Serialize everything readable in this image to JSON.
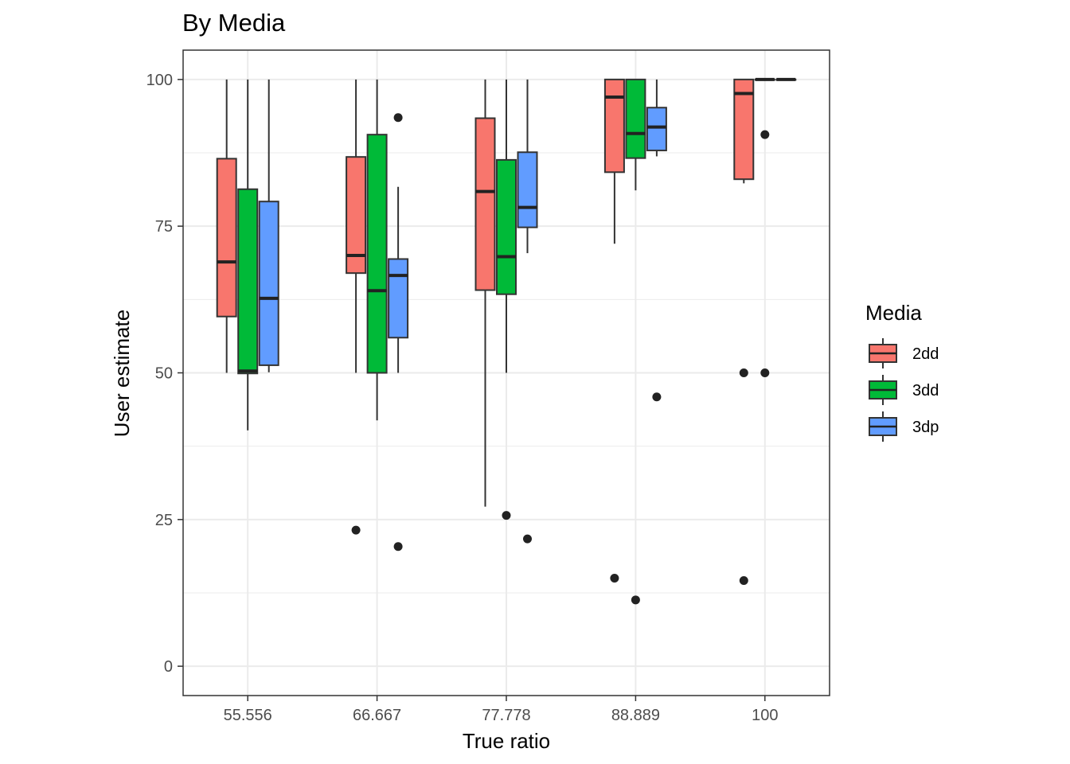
{
  "chart_data": {
    "type": "boxplot",
    "title": "By Media",
    "xlabel": "True ratio",
    "ylabel": "User estimate",
    "categories": [
      "55.556",
      "66.667",
      "77.778",
      "88.889",
      "100"
    ],
    "ylim": [
      -5,
      105
    ],
    "yticks": [
      0,
      25,
      50,
      75,
      100
    ],
    "grid": true,
    "legend": {
      "title": "Media",
      "position": "right"
    },
    "series": [
      {
        "name": "2dd",
        "color": "#F8766D",
        "boxes": [
          {
            "min": 50,
            "q1": 59.6,
            "median": 68.9,
            "q3": 86.5,
            "max": 100,
            "outliers": []
          },
          {
            "min": 50,
            "q1": 67.0,
            "median": 70.0,
            "q3": 86.8,
            "max": 100,
            "outliers": [
              23.2
            ]
          },
          {
            "min": 27.2,
            "q1": 64.1,
            "median": 80.9,
            "q3": 93.4,
            "max": 100,
            "outliers": []
          },
          {
            "min": 72.0,
            "q1": 84.2,
            "median": 97.0,
            "q3": 100,
            "max": 100,
            "outliers": [
              15.0
            ]
          },
          {
            "min": 82.3,
            "q1": 83.0,
            "median": 97.6,
            "q3": 100,
            "max": 100,
            "outliers": [
              50.0,
              14.6
            ]
          }
        ]
      },
      {
        "name": "3dd",
        "color": "#00BA38",
        "boxes": [
          {
            "min": 40.2,
            "q1": 49.9,
            "median": 50.3,
            "q3": 81.3,
            "max": 100,
            "outliers": []
          },
          {
            "min": 41.9,
            "q1": 50.0,
            "median": 64.0,
            "q3": 90.6,
            "max": 100,
            "outliers": []
          },
          {
            "min": 50,
            "q1": 63.4,
            "median": 69.8,
            "q3": 86.3,
            "max": 100,
            "outliers": [
              25.7
            ]
          },
          {
            "min": 81.1,
            "q1": 86.6,
            "median": 90.8,
            "q3": 100,
            "max": 100,
            "outliers": [
              11.3
            ]
          },
          {
            "min": 100,
            "q1": 100,
            "median": 100,
            "q3": 100,
            "max": 100,
            "outliers": [
              90.6,
              50.0
            ]
          }
        ]
      },
      {
        "name": "3dp",
        "color": "#619CFF",
        "boxes": [
          {
            "min": 50.1,
            "q1": 51.3,
            "median": 62.7,
            "q3": 79.2,
            "max": 100,
            "outliers": []
          },
          {
            "min": 50,
            "q1": 56.0,
            "median": 66.6,
            "q3": 69.4,
            "max": 81.7,
            "outliers": [
              93.5,
              20.4
            ]
          },
          {
            "min": 70.4,
            "q1": 74.8,
            "median": 78.2,
            "q3": 87.6,
            "max": 100,
            "outliers": [
              21.7
            ]
          },
          {
            "min": 86.9,
            "q1": 87.9,
            "median": 91.9,
            "q3": 95.2,
            "max": 100,
            "outliers": [
              45.9
            ]
          },
          {
            "min": 100,
            "q1": 100,
            "median": 100,
            "q3": 100,
            "max": 100,
            "outliers": []
          }
        ]
      }
    ]
  }
}
